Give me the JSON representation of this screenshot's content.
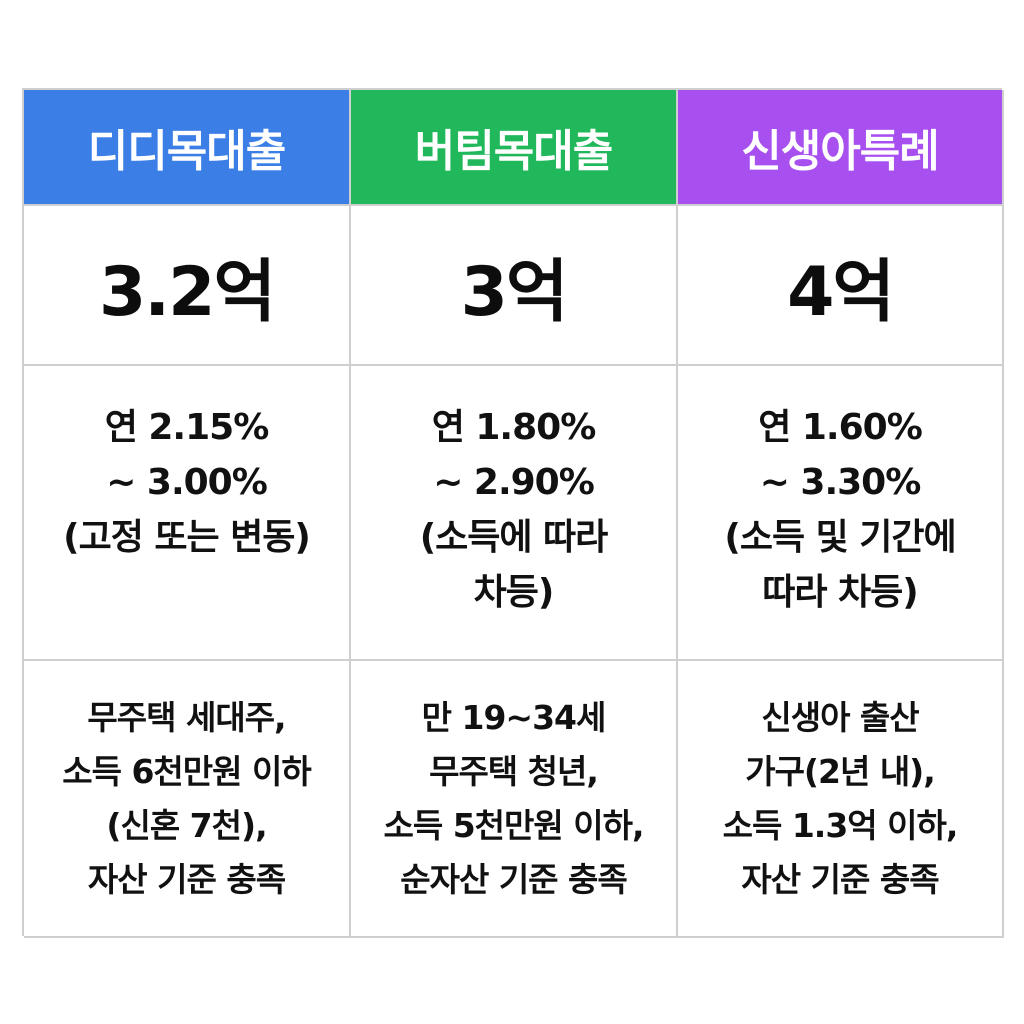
{
  "colors": {
    "didimdol": "#3a7ee6",
    "beotimmok": "#20b85a",
    "newborn": "#a84ff0"
  },
  "columns": [
    {
      "header": "디디목대출",
      "amount": "3.2억",
      "rate_lines": [
        "연 2.15%",
        "~ 3.00%",
        "(고정 또는 변동)"
      ],
      "condition_lines": [
        "무주택 세대주,",
        "소득 6천만원 이하",
        "(신혼 7천),",
        "자산 기준 충족"
      ]
    },
    {
      "header": "버팀목대출",
      "amount": "3억",
      "rate_lines": [
        "연 1.80%",
        "~ 2.90%",
        "(소득에 따라",
        "차등)"
      ],
      "condition_lines": [
        "만 19~34세",
        "무주택 청년,",
        "소득 5천만원 이하,",
        "순자산 기준 충족"
      ]
    },
    {
      "header": "신생아특례",
      "amount": "4억",
      "rate_lines": [
        "연 1.60%",
        "~ 3.30%",
        "(소득 및 기간에",
        "따라 차등)"
      ],
      "condition_lines": [
        "신생아 출산",
        "가구(2년 내),",
        "소득 1.3억 이하,",
        "자산 기준 충족"
      ]
    }
  ]
}
